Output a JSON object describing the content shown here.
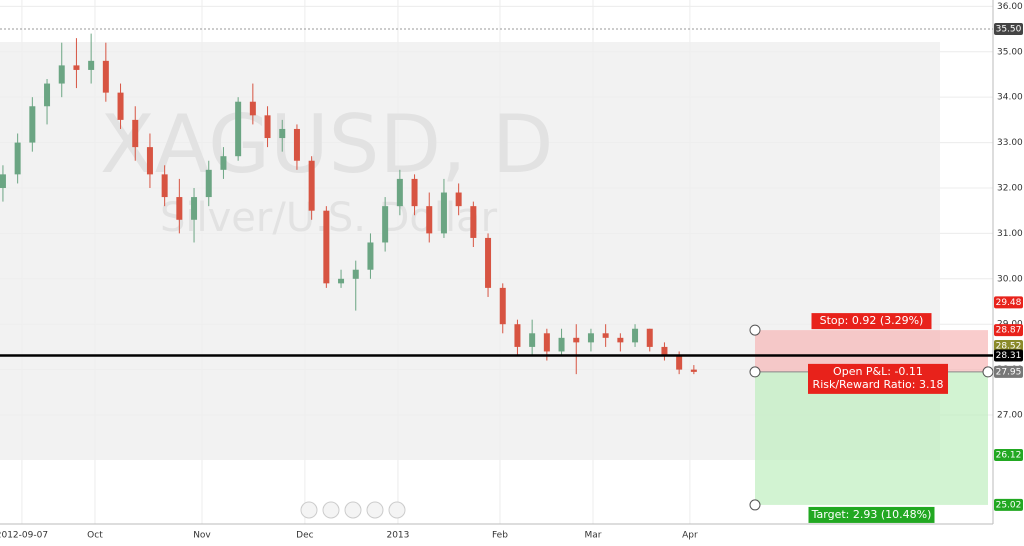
{
  "chart_data": {
    "type": "candlestick",
    "watermark_title": "XAGUSD, D",
    "watermark_subtitle": "Silver/U.S. Dollar",
    "xlim": [
      -0.2,
      67.35
    ],
    "xticks": [
      {
        "value": 1.29,
        "label": "2012-09-07"
      },
      {
        "value": 6.26,
        "label": "Oct"
      },
      {
        "value": 13.54,
        "label": "Nov"
      },
      {
        "value": 20.54,
        "label": "Dec"
      },
      {
        "value": 26.87,
        "label": "2013"
      },
      {
        "value": 33.81,
        "label": "Feb"
      },
      {
        "value": 40.14,
        "label": "Mar"
      },
      {
        "value": 46.73,
        "label": "Apr"
      }
    ],
    "ylim": [
      24.6,
      36.14
    ],
    "yticks": [
      {
        "value": 27,
        "label": "27.00"
      },
      {
        "value": 28,
        "label": "28.00"
      },
      {
        "value": 29,
        "label": "29.00"
      },
      {
        "value": 30,
        "label": "30.00"
      },
      {
        "value": 31,
        "label": "31.00"
      },
      {
        "value": 32,
        "label": "32.00"
      },
      {
        "value": 33,
        "label": "33.00"
      },
      {
        "value": 34,
        "label": "34.00"
      },
      {
        "value": 35,
        "label": "35.00"
      },
      {
        "value": 36,
        "label": "36.00"
      }
    ],
    "up_color": "#6ba583",
    "down_color": "#d75442",
    "open": [
      32.0,
      32.3,
      33.0,
      33.8,
      34.3,
      34.7,
      34.6,
      34.8,
      34.1,
      33.5,
      32.9,
      32.3,
      31.8,
      31.3,
      31.8,
      32.4,
      32.7,
      33.9,
      33.6,
      33.1,
      33.3,
      32.6,
      31.5,
      29.9,
      30.0,
      30.2,
      30.8,
      31.6,
      32.2,
      31.6,
      31.0,
      31.9,
      31.6,
      30.9,
      29.8,
      29.0,
      28.5,
      28.8,
      28.4,
      28.7,
      28.6,
      28.8,
      28.7,
      28.6,
      28.9,
      28.5,
      28.3,
      28.0
    ],
    "high": [
      32.5,
      33.2,
      34.0,
      34.4,
      35.2,
      35.3,
      35.4,
      35.2,
      34.3,
      33.8,
      33.2,
      32.5,
      32.2,
      32.0,
      32.6,
      32.9,
      34.0,
      34.3,
      33.8,
      33.5,
      33.4,
      32.7,
      31.6,
      30.2,
      30.4,
      31.0,
      31.8,
      32.4,
      32.3,
      31.9,
      32.2,
      32.1,
      31.7,
      31.0,
      29.9,
      29.1,
      29.1,
      28.9,
      28.9,
      29.0,
      28.9,
      29.0,
      28.8,
      29.0,
      28.9,
      28.6,
      28.4,
      28.1
    ],
    "low": [
      31.7,
      32.1,
      32.8,
      33.4,
      34.0,
      34.2,
      34.3,
      33.9,
      33.3,
      32.6,
      32.0,
      31.6,
      31.0,
      30.8,
      31.6,
      32.2,
      32.6,
      33.4,
      32.9,
      32.8,
      32.4,
      31.3,
      29.8,
      29.8,
      29.3,
      30.0,
      30.6,
      31.4,
      31.4,
      30.8,
      30.9,
      31.4,
      30.7,
      29.6,
      28.8,
      28.3,
      28.3,
      28.2,
      28.3,
      27.9,
      28.4,
      28.5,
      28.4,
      28.5,
      28.4,
      28.2,
      27.9,
      27.9
    ],
    "close": [
      32.3,
      33.0,
      33.8,
      34.3,
      34.7,
      34.6,
      34.8,
      34.1,
      33.5,
      32.9,
      32.3,
      31.8,
      31.3,
      31.8,
      32.4,
      32.7,
      33.9,
      33.6,
      33.1,
      33.3,
      32.6,
      31.5,
      29.9,
      30.0,
      30.2,
      30.8,
      31.6,
      32.2,
      31.6,
      31.0,
      31.9,
      31.6,
      30.9,
      29.8,
      29.0,
      28.5,
      28.8,
      28.4,
      28.7,
      28.6,
      28.8,
      28.7,
      28.6,
      28.9,
      28.5,
      28.3,
      28.0,
      27.95
    ],
    "horizontal_line": 28.31,
    "price_labels": [
      {
        "value": 35.5,
        "label": "35.50",
        "color": "#444444"
      },
      {
        "value": 29.48,
        "label": "29.48",
        "color": "#e8221b"
      },
      {
        "value": 28.87,
        "label": "28.87",
        "color": "#e8221b"
      },
      {
        "value": 28.52,
        "label": "28.52",
        "color": "#8a8a2a"
      },
      {
        "value": 28.31,
        "label": "28.31",
        "color": "#000000"
      },
      {
        "value": 27.95,
        "label": "27.95",
        "color": "#777777"
      },
      {
        "value": 26.12,
        "label": "26.12",
        "color": "#22a822"
      },
      {
        "value": 25.02,
        "label": "25.02",
        "color": "#22a822"
      }
    ],
    "position": {
      "stop": 28.87,
      "entry": 27.95,
      "target": 25.02,
      "stop_label": "Stop: 0.92 (3.29%)",
      "pnl_label": "Open P&L: -0.11",
      "rr_label": "Risk/Reward Ratio: 3.18",
      "target_label": "Target: 2.93 (10.48%)"
    }
  }
}
